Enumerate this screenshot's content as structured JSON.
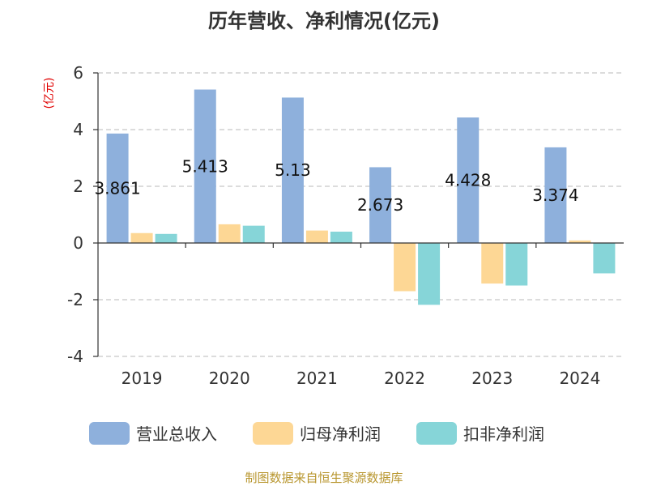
{
  "chart_data": {
    "type": "bar",
    "title": "历年营收、净利情况(亿元)",
    "ylabel": "(亿元)",
    "categories": [
      "2019",
      "2020",
      "2021",
      "2022",
      "2023",
      "2024"
    ],
    "ylim": [
      -4,
      6
    ],
    "yticks": [
      -4,
      -2,
      0,
      2,
      4,
      6
    ],
    "grid": true,
    "legend_position": "bottom",
    "series": [
      {
        "name": "营业总收入",
        "color": "#8eb0dc",
        "values": [
          3.861,
          5.413,
          5.13,
          2.673,
          4.428,
          3.374
        ],
        "data_labels": [
          "3.861",
          "5.413",
          "5.13",
          "2.673",
          "4.428",
          "3.374"
        ]
      },
      {
        "name": "归母净利润",
        "color": "#fdd795",
        "values": [
          0.35,
          0.66,
          0.44,
          -1.7,
          -1.43,
          0.09
        ]
      },
      {
        "name": "扣非净利润",
        "color": "#86d5d8",
        "values": [
          0.32,
          0.61,
          0.4,
          -2.18,
          -1.5,
          -1.07
        ]
      }
    ]
  },
  "source": "制图数据来自恒生聚源数据库"
}
